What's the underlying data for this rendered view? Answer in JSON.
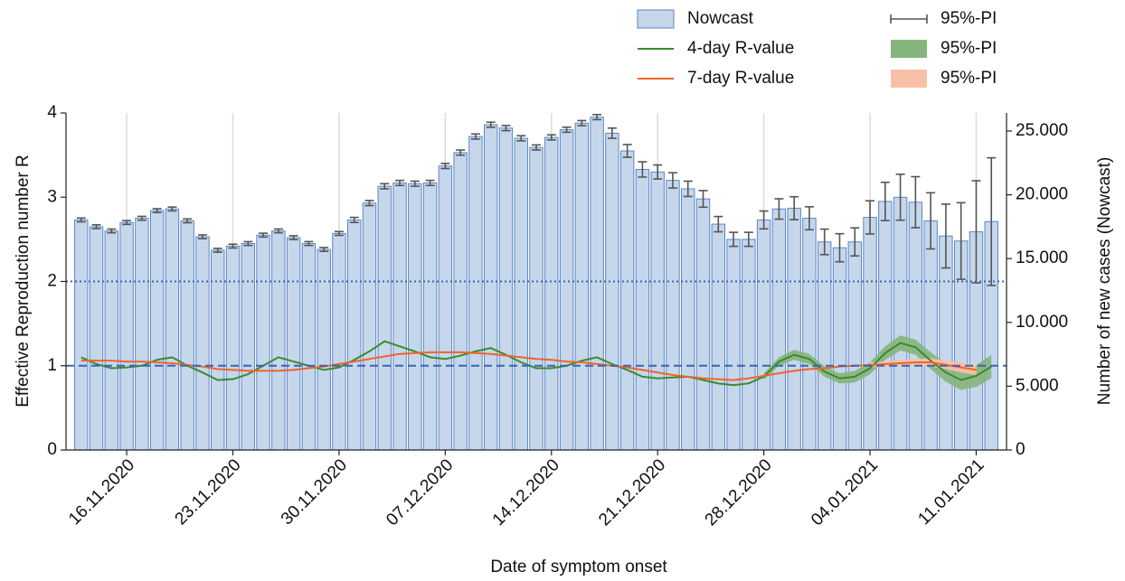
{
  "chart_data": {
    "type": "bar-line",
    "x_label": "Date of symptom onset",
    "y_label": "Effective Reproduction number R",
    "y2_label": "Number of new cases (Nowcast)",
    "x": [
      "2020-11-13",
      "2020-11-14",
      "2020-11-15",
      "2020-11-16",
      "2020-11-17",
      "2020-11-18",
      "2020-11-19",
      "2020-11-20",
      "2020-11-21",
      "2020-11-22",
      "2020-11-23",
      "2020-11-24",
      "2020-11-25",
      "2020-11-26",
      "2020-11-27",
      "2020-11-28",
      "2020-11-29",
      "2020-11-30",
      "2020-12-01",
      "2020-12-02",
      "2020-12-03",
      "2020-12-04",
      "2020-12-05",
      "2020-12-06",
      "2020-12-07",
      "2020-12-08",
      "2020-12-09",
      "2020-12-10",
      "2020-12-11",
      "2020-12-12",
      "2020-12-13",
      "2020-12-14",
      "2020-12-15",
      "2020-12-16",
      "2020-12-17",
      "2020-12-18",
      "2020-12-19",
      "2020-12-20",
      "2020-12-21",
      "2020-12-22",
      "2020-12-23",
      "2020-12-24",
      "2020-12-25",
      "2020-12-26",
      "2020-12-27",
      "2020-12-28",
      "2020-12-29",
      "2020-12-30",
      "2020-12-31",
      "2021-01-01",
      "2021-01-02",
      "2021-01-03",
      "2021-01-04",
      "2021-01-05",
      "2021-01-06",
      "2021-01-07",
      "2021-01-08",
      "2021-01-09",
      "2021-01-10",
      "2021-01-11",
      "2021-01-12"
    ],
    "xlim": [
      "2020-11-12",
      "2021-01-13"
    ],
    "xticks": [
      {
        "value": "2020-11-16",
        "label": "16.11.2020"
      },
      {
        "value": "2020-11-23",
        "label": "23.11.2020"
      },
      {
        "value": "2020-11-30",
        "label": "30.11.2020"
      },
      {
        "value": "2020-12-07",
        "label": "07.12.2020"
      },
      {
        "value": "2020-12-14",
        "label": "14.12.2020"
      },
      {
        "value": "2020-12-21",
        "label": "21.12.2020"
      },
      {
        "value": "2020-12-28",
        "label": "28.12.2020"
      },
      {
        "value": "2021-01-04",
        "label": "04.01.2021"
      },
      {
        "value": "2021-01-11",
        "label": "11.01.2021"
      }
    ],
    "ylim": [
      0,
      4
    ],
    "yticks": [
      0,
      1,
      2,
      3,
      4
    ],
    "y2lim": [
      0,
      26416
    ],
    "y2ticks": [
      0,
      {
        "value": 5000,
        "label": "5.000"
      },
      {
        "value": 10000,
        "label": "10.000"
      },
      {
        "value": 15000,
        "label": "15.000"
      },
      {
        "value": 20000,
        "label": "20.000"
      },
      {
        "value": 25000,
        "label": "25.000"
      }
    ],
    "grid": "x",
    "legend": "top right",
    "reference_lines": [
      {
        "value": 2,
        "style": "dotted",
        "color": "#3a64b0"
      },
      {
        "value": 1,
        "style": "dashed",
        "color": "#3a64b0"
      }
    ],
    "series": [
      {
        "name": "Nowcast",
        "type": "bar",
        "axis": "y2",
        "color": "#c6d7eb",
        "edge_color": "#5b86c5",
        "interval_name": "95%-PI",
        "interval_color": "#555555",
        "values": [
          18030,
          17500,
          17170,
          17830,
          18160,
          18760,
          18890,
          17960,
          16710,
          15650,
          15980,
          16180,
          16840,
          17170,
          16640,
          16180,
          15720,
          16970,
          18030,
          19350,
          20670,
          20930,
          20870,
          20930,
          22260,
          23310,
          24570,
          25490,
          25230,
          24430,
          23710,
          24500,
          25100,
          25620,
          26090,
          24830,
          23440,
          21990,
          21790,
          21130,
          20470,
          19680,
          17700,
          16510,
          16510,
          18030,
          18890,
          18950,
          18160,
          16310,
          15850,
          16310,
          18230,
          19480,
          19810,
          19420,
          17960,
          16770,
          16380,
          17100,
          17900
        ],
        "error": [
          150,
          150,
          150,
          150,
          150,
          150,
          150,
          150,
          150,
          150,
          150,
          150,
          150,
          150,
          150,
          150,
          150,
          150,
          200,
          200,
          200,
          200,
          200,
          200,
          200,
          200,
          200,
          200,
          200,
          200,
          200,
          200,
          200,
          200,
          200,
          400,
          500,
          600,
          550,
          600,
          600,
          650,
          600,
          550,
          550,
          700,
          800,
          900,
          900,
          1000,
          1100,
          1100,
          1300,
          1500,
          1800,
          2000,
          2200,
          2500,
          3000,
          4000,
          5000
        ]
      },
      {
        "name": "4-day R-value",
        "type": "line",
        "color": "#3a8a2e",
        "interval_name": "95%-PI",
        "interval_color": "#85b57c",
        "values": [
          1.1,
          1.02,
          0.97,
          0.98,
          1.0,
          1.07,
          1.1,
          1.0,
          0.92,
          0.83,
          0.84,
          0.9,
          1.0,
          1.1,
          1.05,
          1.0,
          0.95,
          0.98,
          1.07,
          1.17,
          1.29,
          1.23,
          1.17,
          1.1,
          1.08,
          1.12,
          1.17,
          1.21,
          1.13,
          1.04,
          0.97,
          0.97,
          1.0,
          1.06,
          1.1,
          1.02,
          0.95,
          0.87,
          0.85,
          0.86,
          0.87,
          0.83,
          0.79,
          0.77,
          0.79,
          0.87,
          1.05,
          1.13,
          1.08,
          0.93,
          0.85,
          0.87,
          0.97,
          1.15,
          1.27,
          1.22,
          1.06,
          0.92,
          0.83,
          0.88,
          0.99
        ],
        "lower": [
          null,
          null,
          null,
          null,
          null,
          null,
          null,
          null,
          null,
          null,
          null,
          null,
          null,
          null,
          null,
          null,
          null,
          null,
          null,
          null,
          null,
          null,
          null,
          null,
          null,
          null,
          null,
          null,
          null,
          null,
          null,
          null,
          null,
          null,
          null,
          null,
          null,
          null,
          null,
          null,
          null,
          null,
          null,
          null,
          null,
          0.83,
          1.0,
          1.07,
          1.02,
          0.87,
          0.79,
          0.8,
          0.9,
          1.07,
          1.18,
          1.13,
          0.96,
          0.81,
          0.71,
          0.75,
          0.85
        ],
        "upper": [
          null,
          null,
          null,
          null,
          null,
          null,
          null,
          null,
          null,
          null,
          null,
          null,
          null,
          null,
          null,
          null,
          null,
          null,
          null,
          null,
          null,
          null,
          null,
          null,
          null,
          null,
          null,
          null,
          null,
          null,
          null,
          null,
          null,
          null,
          null,
          null,
          null,
          null,
          null,
          null,
          null,
          null,
          null,
          null,
          null,
          0.91,
          1.1,
          1.19,
          1.14,
          0.99,
          0.91,
          0.94,
          1.04,
          1.23,
          1.36,
          1.31,
          1.16,
          1.03,
          0.95,
          1.01,
          1.13
        ]
      },
      {
        "name": "7-day R-value",
        "type": "line",
        "color": "#f0642a",
        "interval_name": "95%-PI",
        "interval_color": "#f9c0a8",
        "values": [
          1.06,
          1.06,
          1.06,
          1.05,
          1.05,
          1.04,
          1.03,
          1.01,
          0.99,
          0.96,
          0.95,
          0.94,
          0.94,
          0.94,
          0.95,
          0.97,
          0.99,
          1.02,
          1.05,
          1.08,
          1.11,
          1.14,
          1.15,
          1.16,
          1.16,
          1.16,
          1.15,
          1.14,
          1.12,
          1.1,
          1.08,
          1.07,
          1.05,
          1.04,
          1.02,
          1.0,
          0.98,
          0.95,
          0.92,
          0.89,
          0.87,
          0.85,
          0.84,
          0.83,
          0.85,
          0.88,
          0.91,
          0.94,
          0.96,
          0.97,
          0.99,
          1.0,
          1.01,
          1.02,
          1.03,
          1.04,
          1.04,
          1.01,
          0.98,
          0.95,
          null
        ],
        "lower": [
          null,
          null,
          null,
          null,
          null,
          null,
          null,
          null,
          null,
          null,
          null,
          null,
          null,
          null,
          null,
          null,
          null,
          null,
          null,
          null,
          null,
          null,
          null,
          null,
          null,
          null,
          null,
          null,
          null,
          null,
          null,
          null,
          null,
          null,
          null,
          null,
          null,
          null,
          null,
          null,
          null,
          null,
          null,
          null,
          null,
          null,
          null,
          null,
          null,
          null,
          null,
          null,
          0.98,
          0.99,
          0.99,
          1.0,
          0.99,
          0.96,
          0.92,
          0.89,
          null
        ],
        "upper": [
          null,
          null,
          null,
          null,
          null,
          null,
          null,
          null,
          null,
          null,
          null,
          null,
          null,
          null,
          null,
          null,
          null,
          null,
          null,
          null,
          null,
          null,
          null,
          null,
          null,
          null,
          null,
          null,
          null,
          null,
          null,
          null,
          null,
          null,
          null,
          null,
          null,
          null,
          null,
          null,
          null,
          null,
          null,
          null,
          null,
          null,
          null,
          null,
          null,
          null,
          null,
          null,
          1.04,
          1.05,
          1.07,
          1.08,
          1.09,
          1.06,
          1.04,
          1.01,
          null
        ]
      }
    ]
  }
}
